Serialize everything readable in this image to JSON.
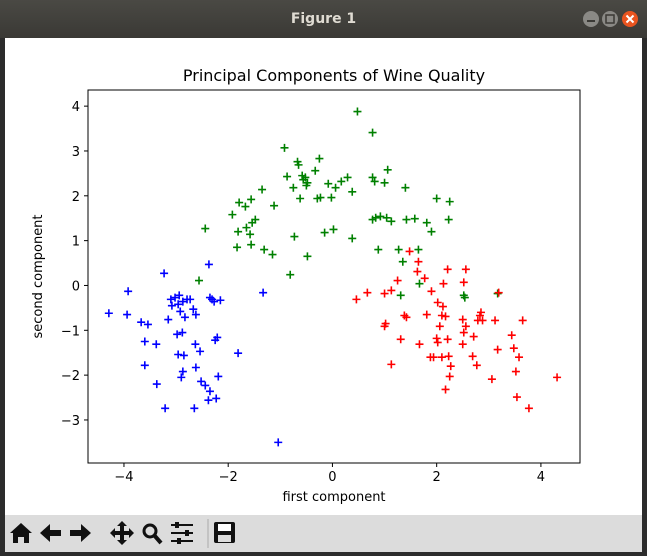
{
  "window": {
    "title": "Figure 1"
  },
  "chart_data": {
    "type": "scatter",
    "title": "Principal Components of Wine Quality",
    "x_label": "first component",
    "y_label": "second component",
    "marker": "+",
    "xlim": [
      -4.69,
      4.75
    ],
    "ylim": [
      -3.96,
      4.36
    ],
    "xticks": [
      {
        "value": -4,
        "label": "−4"
      },
      {
        "value": -2,
        "label": "−2"
      },
      0,
      2,
      4
    ],
    "yticks": [
      {
        "value": -3,
        "label": "−3"
      },
      {
        "value": -2,
        "label": "−2"
      },
      {
        "value": -1,
        "label": "−1"
      },
      0,
      1,
      2,
      3,
      4
    ],
    "series": [
      {
        "color": "#0000ff",
        "x": [
          -4.29,
          -3.92,
          -3.94,
          -3.23,
          -2.37,
          -3.67,
          -3.54,
          -3.6,
          -3.38,
          -3.6,
          -3.37,
          -3.21,
          -3.1,
          -3.02,
          -2.94,
          -3.08,
          -2.96,
          -2.87,
          -2.79,
          -2.73,
          -2.92,
          -2.83,
          -2.67,
          -2.62,
          -2.35,
          -2.31,
          -2.27,
          -2.15,
          -2.98,
          -2.88,
          -2.96,
          -2.85,
          -2.63,
          -2.87,
          -2.9,
          -2.62,
          -2.52,
          -2.44,
          -2.35,
          -2.38,
          -2.19,
          -2.65,
          -2.23,
          -2.21,
          -2.25,
          -1.81,
          -1.33,
          -1.04,
          -3.15,
          -2.54
        ],
        "values": [
          -0.62,
          -0.13,
          -0.65,
          0.27,
          0.47,
          -0.82,
          -0.87,
          -1.25,
          -1.31,
          -1.78,
          -2.2,
          -2.74,
          -0.31,
          -0.27,
          -0.22,
          -0.45,
          -0.42,
          -0.36,
          -0.31,
          -0.31,
          -0.58,
          -0.71,
          -0.53,
          -0.65,
          -0.27,
          -0.31,
          -0.36,
          -0.33,
          -1.09,
          -1.05,
          -1.54,
          -1.56,
          -1.31,
          -1.92,
          -2.05,
          -1.83,
          -2.14,
          -2.23,
          -2.36,
          -2.56,
          -2.03,
          -2.74,
          -2.52,
          -1.16,
          -1.22,
          -1.51,
          -0.16,
          -3.5,
          -0.76,
          -1.47
        ]
      },
      {
        "color": "#008000",
        "x": [
          0.48,
          0.77,
          -0.92,
          1.06,
          -0.25,
          -0.67,
          -0.33,
          -0.08,
          -0.87,
          -0.65,
          -0.56,
          -0.52,
          -0.48,
          -0.58,
          -0.5,
          -0.62,
          -0.75,
          0.29,
          0.17,
          0.06,
          0.38,
          0.81,
          0.77,
          1.0,
          1.4,
          -1.35,
          -1.79,
          -1.92,
          -1.67,
          -1.56,
          -1.12,
          -0.23,
          -0.02,
          -0.29,
          -1.54,
          -1.48,
          -1.65,
          -1.58,
          -1.81,
          -1.83,
          -1.56,
          -1.31,
          -1.15,
          -0.73,
          -0.15,
          0.02,
          0.38,
          0.88,
          0.77,
          0.83,
          0.92,
          1.04,
          1.13,
          1.42,
          1.58,
          1.81,
          2.0,
          2.25,
          1.9,
          2.23,
          1.27,
          1.65,
          1.35,
          -0.81,
          -0.48,
          1.31,
          1.67,
          2.52,
          2.54,
          3.17,
          -2.44,
          -2.56
        ],
        "values": [
          3.88,
          3.41,
          3.07,
          2.58,
          2.83,
          2.76,
          2.56,
          2.27,
          2.43,
          2.69,
          2.36,
          2.41,
          2.29,
          2.45,
          2.23,
          1.94,
          2.18,
          2.41,
          2.32,
          2.18,
          2.09,
          2.32,
          2.41,
          2.29,
          2.18,
          2.14,
          1.85,
          1.58,
          1.76,
          1.92,
          1.78,
          1.96,
          1.96,
          1.94,
          1.4,
          1.47,
          1.29,
          1.14,
          1.2,
          0.85,
          0.91,
          0.8,
          0.69,
          1.09,
          1.18,
          1.25,
          1.05,
          0.8,
          1.47,
          1.51,
          1.54,
          1.51,
          1.43,
          1.47,
          1.49,
          1.4,
          1.94,
          1.87,
          1.2,
          1.47,
          0.8,
          0.8,
          0.53,
          0.24,
          0.65,
          -0.22,
          0.04,
          -0.22,
          -0.27,
          -0.18,
          1.27,
          0.11
        ]
      },
      {
        "color": "#ff0000",
        "x": [
          0.46,
          0.67,
          1.0,
          1.13,
          1.25,
          1.48,
          1.65,
          1.63,
          1.77,
          1.9,
          2.21,
          2.13,
          2.52,
          2.56,
          3.19,
          1.38,
          1.42,
          1.02,
          1.0,
          1.13,
          1.81,
          2.02,
          2.1,
          2.17,
          2.06,
          2.0,
          2.02,
          2.21,
          2.1,
          1.94,
          2.23,
          2.27,
          2.25,
          2.5,
          2.52,
          2.56,
          2.5,
          2.71,
          2.69,
          2.77,
          2.79,
          2.83,
          2.88,
          2.85,
          3.12,
          3.06,
          3.17,
          3.44,
          3.48,
          3.58,
          3.52,
          3.65,
          3.54,
          3.77,
          4.31,
          2.17,
          2.12,
          1.88,
          1.67,
          1.31
        ],
        "values": [
          -0.31,
          -0.16,
          -0.18,
          -0.11,
          0.11,
          0.76,
          0.53,
          0.31,
          0.16,
          -0.13,
          0.36,
          0.04,
          0.07,
          0.36,
          -0.16,
          -0.67,
          -0.71,
          -0.85,
          -0.91,
          -1.76,
          -0.65,
          -0.38,
          -0.67,
          -0.69,
          -0.91,
          -1.18,
          -1.27,
          -1.2,
          -1.6,
          -1.6,
          -1.58,
          -1.8,
          -2.03,
          -1.31,
          -1.05,
          -0.91,
          -0.76,
          -1.14,
          -1.58,
          -1.78,
          -0.78,
          -0.67,
          -0.78,
          -0.6,
          -0.78,
          -2.09,
          -1.43,
          -1.11,
          -1.4,
          -1.6,
          -1.92,
          -0.78,
          -2.49,
          -2.74,
          -2.05,
          -2.32,
          -0.47,
          -1.6,
          -1.31,
          -1.2
        ]
      }
    ]
  }
}
